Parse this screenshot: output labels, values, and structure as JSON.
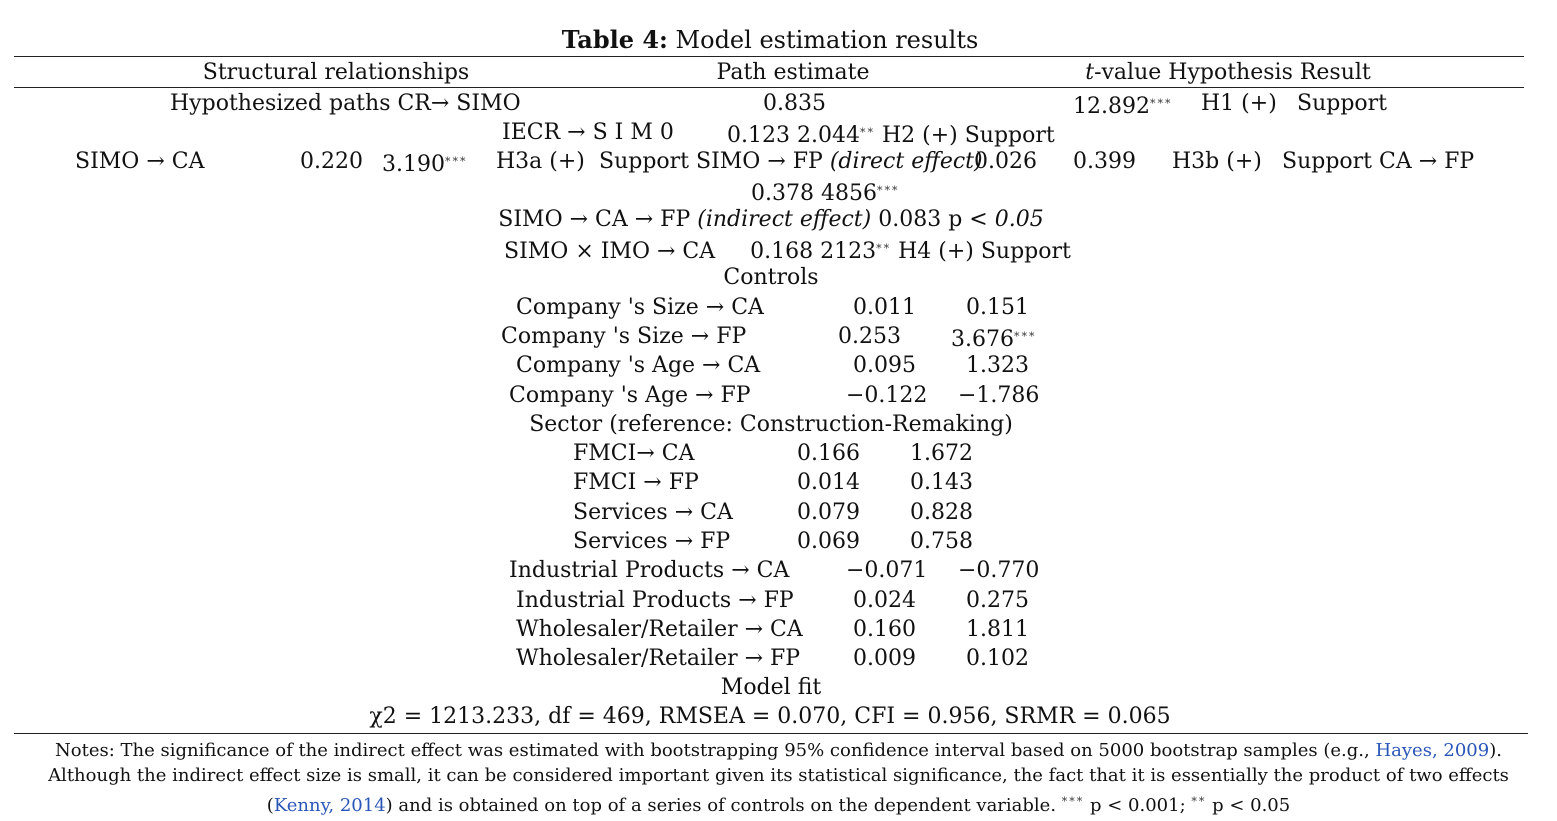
{
  "title": {
    "label": "Table 4:",
    "text": "Model estimation results"
  },
  "header": {
    "col1": "Structural relationships",
    "col2": "Path estimate",
    "col3_italic": "t",
    "col3_rest": "-value Hypothesis Result"
  },
  "rows": {
    "r1_rel": "Hypothesized paths CR→ SIMO",
    "r1_est": "0.835",
    "r1_t": "12.892",
    "r1_hyp": "H1 (+)",
    "r1_res": "Support",
    "r2_rel": "IECR → S I M 0",
    "r2_est_t": "0.123 2.044",
    "r2_rest": "H2 (+) Support",
    "r3_rel": "SIMO → CA",
    "r3_est": "0.220",
    "r3_t": "3.190",
    "r3_hyp": "H3a (+)",
    "r3_mid_a": "Support SIMO → FP ",
    "r3_mid_b": "(direct effect)",
    "r3_est2": "0.026",
    "r3_t2": "0.399",
    "r3_hyp2": "H3b (+)",
    "r3_tail": "Support CA → FP",
    "r4": "0.378 4856",
    "r5_a": "SIMO → CA → FP ",
    "r5_b": "(indirect effect)",
    "r5_c": " 0.083 p ",
    "r5_d": "< 0.05",
    "r6_a": "SIMO × IMO → CA     0.168 2123",
    "r6_b": " H4 (+) Support"
  },
  "stars": {
    "three": "***",
    "two": "**"
  },
  "controls_heading": "Controls",
  "controls": [
    {
      "rel": "Company 's Size → CA",
      "est": "0.011",
      "t": "0.151",
      "stars": ""
    },
    {
      "rel": "Company 's Size → FP",
      "est": "0.253",
      "t": "3.676",
      "stars": "***"
    },
    {
      "rel": "Company 's Age → CA",
      "est": "0.095",
      "t": "1.323",
      "stars": ""
    },
    {
      "rel": "Company 's Age → FP",
      "est": "−0.122",
      "t": "−1.786",
      "stars": ""
    }
  ],
  "sector_heading": "Sector (reference: Construction-Remaking)",
  "sector": [
    {
      "rel": "FMCI→ CA",
      "est": "0.166",
      "t": "1.672"
    },
    {
      "rel": "FMCI → FP",
      "est": "0.014",
      "t": "0.143"
    },
    {
      "rel": "Services → CA",
      "est": "0.079",
      "t": "0.828"
    },
    {
      "rel": "Services → FP",
      "est": "0.069",
      "t": "0.758"
    },
    {
      "rel": "Industrial Products → CA",
      "est": "−0.071",
      "t": "−0.770"
    },
    {
      "rel": "Industrial Products → FP",
      "est": "0.024",
      "t": "0.275"
    },
    {
      "rel": "Wholesaler/Retailer → CA",
      "est": "0.160",
      "t": "1.811"
    },
    {
      "rel": "Wholesaler/Retailer → FP",
      "est": "0.009",
      "t": "0.102"
    }
  ],
  "model_fit_heading": "Model fit",
  "model_fit": "χ2 = 1213.233, df = 469, RMSEA = 0.070, CFI = 0.956, SRMR = 0.065",
  "notes": {
    "line1_a": "Notes: The significance of the indirect effect was estimated with bootstrapping 95% confidence interval based on 5000 bootstrap samples (e.g., ",
    "line1_link": "Hayes, 2009",
    "line1_b": ").",
    "line2": "Although the indirect effect size is small, it can be considered important given its statistical significance, the fact that it is essentially the product of two effects",
    "line3_a": "(",
    "line3_link": "Kenny, 2014",
    "line3_b": ") and is obtained on top of a series of controls on the dependent variable. ",
    "line3_c": " p < 0.001; ",
    "line3_d": " p < 0.05"
  }
}
